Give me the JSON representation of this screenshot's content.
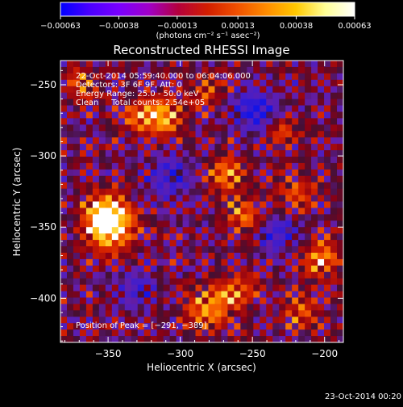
{
  "chart_data": {
    "type": "heatmap",
    "title": "Reconstructed RHESSI Image",
    "xlabel": "Heliocentric X (arcsec)",
    "ylabel": "Heliocentric Y (arcsec)",
    "xlim": [
      -383,
      -187
    ],
    "ylim": [
      -233,
      -431
    ],
    "xticks": [
      -350,
      -300,
      -250,
      -200
    ],
    "xtick_labels": [
      "−350",
      "−300",
      "−250",
      "−200"
    ],
    "yticks": [
      -250,
      -300,
      -350,
      -400
    ],
    "ytick_labels": [
      "−250",
      "−300",
      "−350",
      "−400"
    ],
    "colorbar": {
      "min": -0.00063,
      "max": 0.00063,
      "ticks": [
        -0.00063,
        -0.00038,
        -0.00013,
        0.00013,
        0.00038,
        0.00063
      ],
      "tick_labels": [
        "−0.00063",
        "−0.00038",
        "−0.00013",
        "0.00013",
        "0.00038",
        "0.00063"
      ],
      "unit_label": "(photons cm⁻² s⁻¹ asec⁻²)",
      "colors": [
        "#0000ff",
        "#4b00ff",
        "#7a00ff",
        "#a000c8",
        "#b4003c",
        "#d21e00",
        "#f05000",
        "#ff8c00",
        "#ffc800",
        "#ffff96",
        "#ffffff"
      ]
    },
    "annotations": [
      "22-Oct-2014 05:59:40.000 to 06:04:06.000",
      "Detectors: 3F 6F 9F, Att: 0",
      "Energy Range: 25.0 - 50.0 keV",
      "Clean     Total counts: 2.54e+05"
    ],
    "peak_label": "Position of Peak = [−291, −389]",
    "peak": {
      "x": -291,
      "y": -389
    },
    "sources": [
      {
        "x": -348,
        "y": -350,
        "amp": 1.0,
        "sigma": 11
      },
      {
        "x": -353,
        "y": -340,
        "amp": 0.8,
        "sigma": 10
      },
      {
        "x": -312,
        "y": -272,
        "amp": 0.9,
        "sigma": 9
      },
      {
        "x": -330,
        "y": -273,
        "amp": 0.55,
        "sigma": 8
      },
      {
        "x": -367,
        "y": -250,
        "amp": 0.55,
        "sigma": 8
      },
      {
        "x": -268,
        "y": -312,
        "amp": 0.65,
        "sigma": 9
      },
      {
        "x": -257,
        "y": -340,
        "amp": 0.6,
        "sigma": 9
      },
      {
        "x": -282,
        "y": -408,
        "amp": 0.7,
        "sigma": 10
      },
      {
        "x": -262,
        "y": -395,
        "amp": 0.6,
        "sigma": 9
      },
      {
        "x": -218,
        "y": -328,
        "amp": 0.5,
        "sigma": 8
      },
      {
        "x": -202,
        "y": -372,
        "amp": 0.7,
        "sigma": 9
      },
      {
        "x": -215,
        "y": -410,
        "amp": 0.55,
        "sigma": 8
      },
      {
        "x": -230,
        "y": -283,
        "amp": 0.45,
        "sigma": 8
      },
      {
        "x": -282,
        "y": -255,
        "amp": 0.45,
        "sigma": 8
      },
      {
        "x": -247,
        "y": -268,
        "amp": -0.7,
        "sigma": 10
      },
      {
        "x": -308,
        "y": -315,
        "amp": -0.5,
        "sigma": 11
      },
      {
        "x": -232,
        "y": -355,
        "amp": -0.5,
        "sigma": 9
      },
      {
        "x": -330,
        "y": -392,
        "amp": -0.35,
        "sigma": 10
      }
    ]
  },
  "footer": {
    "timestamp": "23-Oct-2014 00:20"
  }
}
